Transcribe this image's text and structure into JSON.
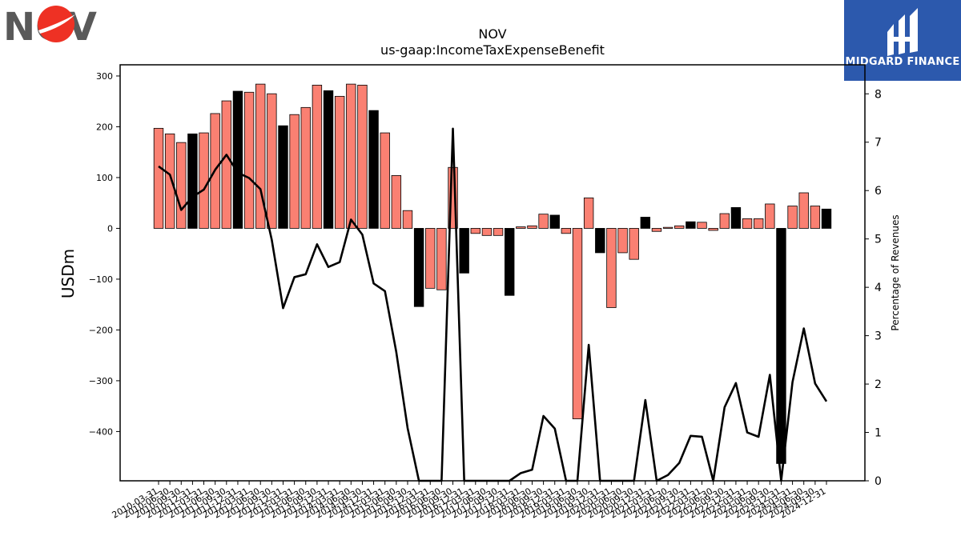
{
  "header": {
    "title_line1": "NOV",
    "title_line2": "us-gaap:IncomeTaxExpenseBenefit"
  },
  "logos": {
    "company_logo_text": "NOV",
    "brand_name": "MIDGARD FINANCE"
  },
  "colors": {
    "bar_default": "#fa8072",
    "bar_highlight": "#000000",
    "line": "#000000",
    "brand_bg": "#2c59ad"
  },
  "chart_data": {
    "type": "bar",
    "title": "NOV\nus-gaap:IncomeTaxExpenseBenefit",
    "ylabel": "USDm",
    "y2label": "Percentage of Revenues",
    "ylim": [
      -497,
      322
    ],
    "y2lim": [
      0,
      8.6
    ],
    "yticks": [
      300,
      200,
      100,
      0,
      -100,
      -200,
      -300,
      -400
    ],
    "yticks_labels": [
      "300",
      "200",
      "100",
      "0",
      "−100",
      "−200",
      "−300",
      "−400"
    ],
    "y2ticks": [
      0,
      1,
      2,
      3,
      4,
      5,
      6,
      7,
      8
    ],
    "y2ticks_labels": [
      "0",
      "1",
      "2",
      "3",
      "4",
      "5",
      "6",
      "7",
      "8"
    ],
    "xtick_labels": [
      "2010-03-31",
      "2010-06-30",
      "2010-09-30",
      "2010-12-31",
      "2011-03-31",
      "2011-06-30",
      "2011-09-30",
      "2011-12-31",
      "2012-03-31",
      "2012-06-30",
      "2012-09-30",
      "2012-12-31",
      "2013-03-31",
      "2013-06-30",
      "2013-09-30",
      "2013-12-31",
      "2014-03-31",
      "2014-06-30",
      "2014-09-30",
      "2014-12-31",
      "2015-03-31",
      "2015-06-30",
      "2015-09-30",
      "2015-12-31",
      "2016-03-31",
      "2016-06-30",
      "2016-09-30",
      "2016-12-31",
      "2017-03-31",
      "2017-06-30",
      "2017-09-30",
      "2017-12-31",
      "2018-03-31",
      "2018-06-30",
      "2018-09-30",
      "2018-12-31",
      "2019-03-31",
      "2019-06-30",
      "2019-09-30",
      "2019-12-31",
      "2020-03-31",
      "2020-06-30",
      "2020-09-30",
      "2020-12-31",
      "2021-03-31",
      "2021-06-30",
      "2021-09-30",
      "2021-12-31",
      "2022-03-31",
      "2022-06-30",
      "2022-09-30",
      "2022-12-31",
      "2023-03-31",
      "2023-06-30",
      "2023-09-30",
      "2023-12-31",
      "2024-03-31",
      "2024-06-30",
      "2024-09-30",
      "2024-12-31"
    ],
    "bars": {
      "values": [
        197,
        186,
        169,
        186,
        188,
        226,
        251,
        270,
        268,
        284,
        265,
        202,
        224,
        238,
        282,
        271,
        260,
        284,
        282,
        232,
        188,
        104,
        35,
        -154,
        -118,
        -121,
        120,
        -88,
        -10,
        -14,
        -14,
        -132,
        3,
        5,
        28,
        26,
        -10,
        -375,
        60,
        -48,
        -156,
        -48,
        -61,
        22,
        -6,
        2,
        5,
        13,
        12,
        -4,
        29,
        41,
        19,
        19,
        48,
        -463,
        44,
        70,
        44,
        38
      ],
      "highlight": [
        false,
        false,
        false,
        true,
        false,
        false,
        false,
        true,
        false,
        false,
        false,
        true,
        false,
        false,
        false,
        true,
        false,
        false,
        false,
        true,
        false,
        false,
        false,
        true,
        false,
        false,
        false,
        true,
        false,
        false,
        false,
        true,
        false,
        false,
        false,
        true,
        false,
        false,
        false,
        true,
        false,
        false,
        false,
        true,
        false,
        false,
        false,
        true,
        false,
        false,
        false,
        true,
        false,
        false,
        false,
        true,
        false,
        false,
        false,
        true
      ]
    },
    "line": {
      "values": [
        6.5,
        6.33,
        5.6,
        5.87,
        6.02,
        6.43,
        6.74,
        6.37,
        6.26,
        6.03,
        4.98,
        3.57,
        4.21,
        4.27,
        4.89,
        4.42,
        4.52,
        5.4,
        5.09,
        4.08,
        3.92,
        2.66,
        1.09,
        0,
        0,
        0,
        7.28,
        0,
        0,
        0,
        0,
        0,
        0.16,
        0.23,
        1.34,
        1.08,
        0,
        0,
        2.81,
        0,
        0,
        0,
        0,
        1.67,
        0,
        0.12,
        0.37,
        0.93,
        0.91,
        0,
        1.52,
        2.02,
        1.0,
        0.91,
        2.19,
        0,
        2.04,
        3.15,
        2.01,
        1.64
      ]
    }
  }
}
